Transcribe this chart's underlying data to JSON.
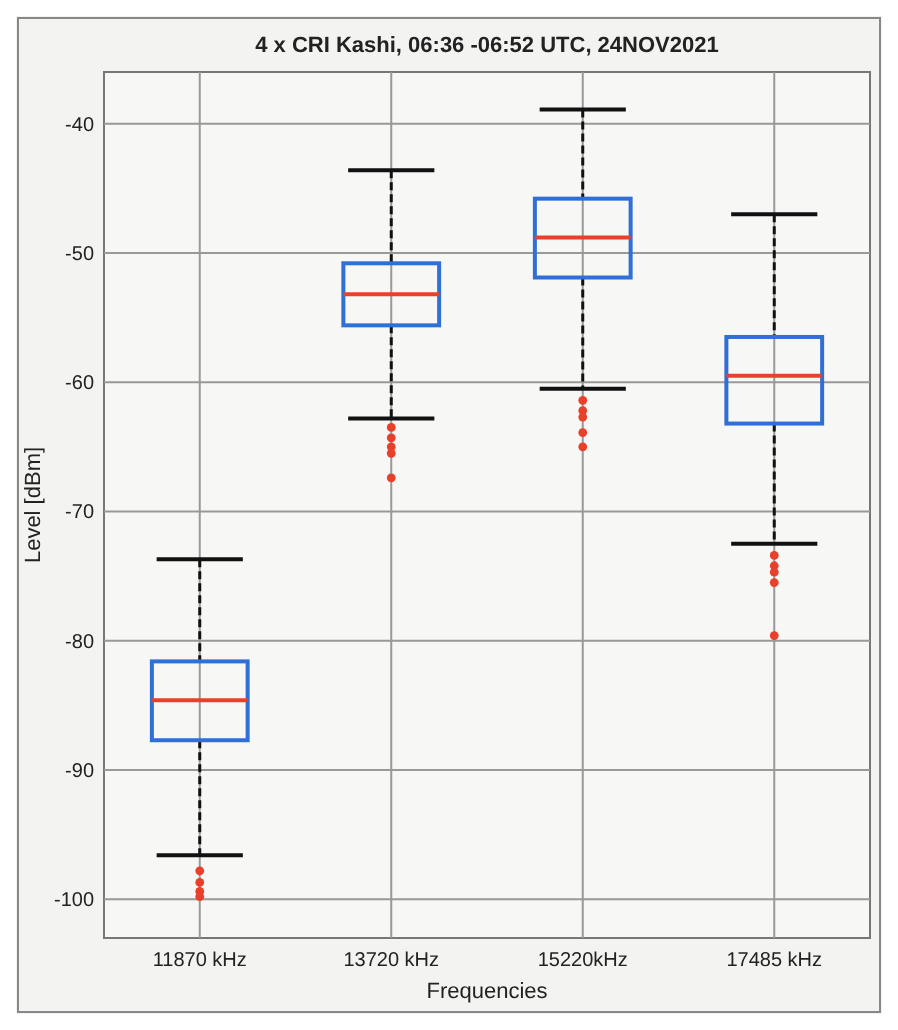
{
  "chart_data": {
    "type": "box",
    "title": "4 x CRI Kashi, 06:36 -06:52 UTC, 24NOV2021",
    "xlabel": "Frequencies",
    "ylabel": "Level [dBm]",
    "categories": [
      "11870 kHz",
      "13720 kHz",
      "15220kHz",
      "17485 kHz"
    ],
    "series": [
      {
        "color": "#2f6fd6",
        "boxes": [
          {
            "low": -96.6,
            "q1": -87.7,
            "median": -84.6,
            "q3": -81.6,
            "high": -73.7,
            "outliers": [
              -97.8,
              -98.7,
              -99.4,
              -99.8
            ]
          },
          {
            "low": -62.8,
            "q1": -55.6,
            "median": -53.2,
            "q3": -50.8,
            "high": -43.6,
            "outliers": [
              -63.5,
              -64.3,
              -65,
              -65.5,
              -67.4
            ]
          },
          {
            "low": -60.5,
            "q1": -51.9,
            "median": -48.8,
            "q3": -45.8,
            "high": -38.9,
            "outliers": [
              -61.4,
              -62.2,
              -62.7,
              -63.9,
              -65
            ]
          },
          {
            "low": -72.5,
            "q1": -63.2,
            "median": -59.5,
            "q3": -56.5,
            "high": -47,
            "outliers": [
              -73.4,
              -74.2,
              -74.7,
              -75.5,
              -79.6
            ]
          }
        ]
      }
    ],
    "ylim": [
      -103,
      -36
    ],
    "yticks": [
      -100,
      -90,
      -80,
      -70,
      -60,
      -50,
      -40
    ],
    "grid": true
  }
}
